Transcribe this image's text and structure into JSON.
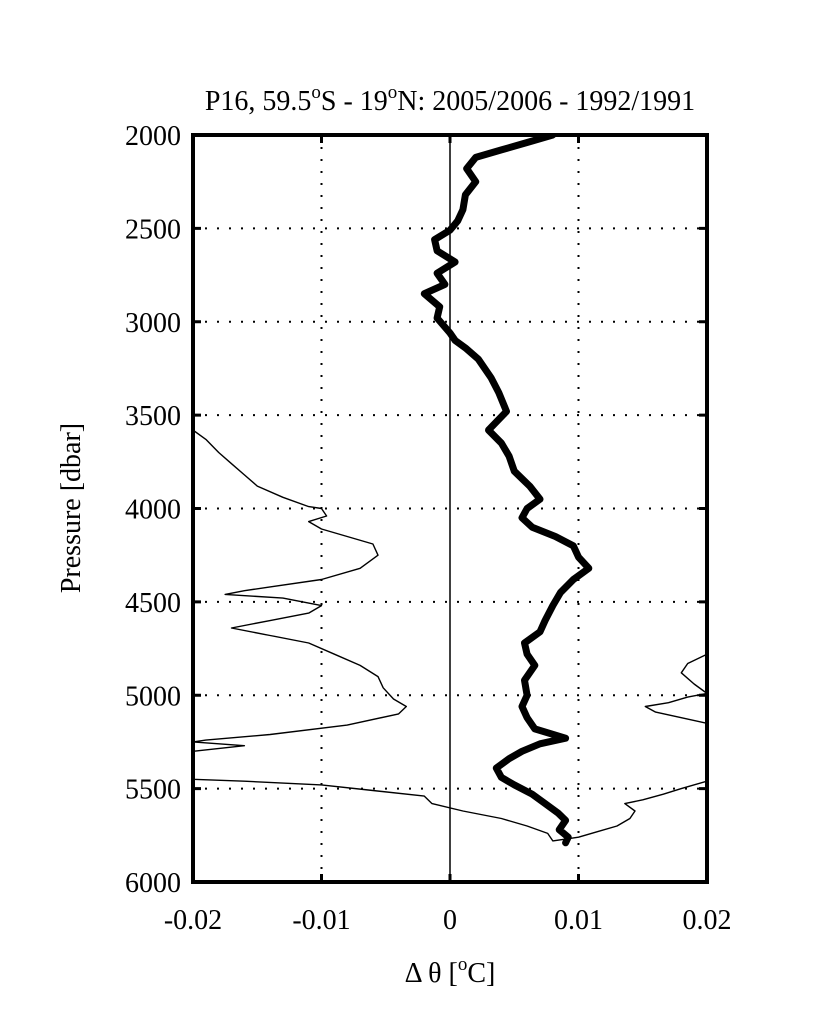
{
  "chart_data": {
    "type": "line",
    "title": {
      "part1": "P16, 59.5",
      "sup1": "o",
      "part2": "S - 19",
      "sup2": "o",
      "part3": "N: 2005/2006 - 1992/1991"
    },
    "xlabel": {
      "part1": "Δ θ [",
      "sup": "o",
      "part2": "C]"
    },
    "ylabel": "Pressure [dbar]",
    "xlim": [
      -0.02,
      0.02
    ],
    "ylim": [
      2000,
      6000
    ],
    "y_inverted": true,
    "x_ticks": [
      -0.02,
      -0.01,
      0,
      0.01,
      0.02
    ],
    "x_tick_labels": [
      "-0.02",
      "-0.01",
      "0",
      "0.01",
      "0.02"
    ],
    "y_ticks": [
      2000,
      2500,
      3000,
      3500,
      4000,
      4500,
      5000,
      5500,
      6000
    ],
    "y_tick_labels": [
      "2000",
      "2500",
      "3000",
      "3500",
      "4000",
      "4500",
      "5000",
      "5500",
      "6000"
    ],
    "grid": "dotted",
    "colors": {
      "line": "#000000",
      "grid": "#000000"
    },
    "series": [
      {
        "style": "thick",
        "points": [
          [
            0.008,
            2000
          ],
          [
            0.006,
            2040
          ],
          [
            0.004,
            2080
          ],
          [
            0.002,
            2120
          ],
          [
            0.0013,
            2180
          ],
          [
            0.002,
            2250
          ],
          [
            0.0012,
            2320
          ],
          [
            0.001,
            2400
          ],
          [
            0.0006,
            2460
          ],
          [
            0.0,
            2510
          ],
          [
            -0.0012,
            2560
          ],
          [
            -0.001,
            2620
          ],
          [
            0.0004,
            2680
          ],
          [
            -0.001,
            2740
          ],
          [
            -0.0004,
            2800
          ],
          [
            -0.002,
            2850
          ],
          [
            -0.0008,
            2920
          ],
          [
            -0.001,
            2980
          ],
          [
            0.0,
            3060
          ],
          [
            0.0004,
            3100
          ],
          [
            0.0012,
            3140
          ],
          [
            0.0022,
            3200
          ],
          [
            0.0032,
            3300
          ],
          [
            0.0038,
            3380
          ],
          [
            0.0044,
            3480
          ],
          [
            0.003,
            3580
          ],
          [
            0.004,
            3650
          ],
          [
            0.0046,
            3720
          ],
          [
            0.005,
            3800
          ],
          [
            0.0062,
            3880
          ],
          [
            0.007,
            3950
          ],
          [
            0.006,
            4000
          ],
          [
            0.0056,
            4050
          ],
          [
            0.0064,
            4100
          ],
          [
            0.0082,
            4150
          ],
          [
            0.0096,
            4200
          ],
          [
            0.01,
            4260
          ],
          [
            0.0108,
            4320
          ],
          [
            0.0096,
            4380
          ],
          [
            0.0086,
            4450
          ],
          [
            0.008,
            4520
          ],
          [
            0.0074,
            4600
          ],
          [
            0.007,
            4660
          ],
          [
            0.0058,
            4720
          ],
          [
            0.006,
            4780
          ],
          [
            0.0066,
            4840
          ],
          [
            0.0058,
            4920
          ],
          [
            0.006,
            5000
          ],
          [
            0.0056,
            5060
          ],
          [
            0.006,
            5120
          ],
          [
            0.0066,
            5180
          ],
          [
            0.009,
            5230
          ],
          [
            0.007,
            5260
          ],
          [
            0.0056,
            5300
          ],
          [
            0.0046,
            5340
          ],
          [
            0.0036,
            5390
          ],
          [
            0.004,
            5440
          ],
          [
            0.005,
            5480
          ],
          [
            0.0064,
            5530
          ],
          [
            0.0074,
            5580
          ],
          [
            0.0084,
            5630
          ],
          [
            0.009,
            5670
          ],
          [
            0.0085,
            5720
          ],
          [
            0.0092,
            5760
          ],
          [
            0.009,
            5790
          ]
        ]
      },
      {
        "style": "thin",
        "points": [
          [
            -0.02,
            3580
          ],
          [
            -0.019,
            3630
          ],
          [
            -0.018,
            3700
          ],
          [
            -0.017,
            3760
          ],
          [
            -0.016,
            3820
          ],
          [
            -0.015,
            3880
          ],
          [
            -0.013,
            3940
          ],
          [
            -0.011,
            3990
          ],
          [
            -0.01,
            4000
          ],
          [
            -0.0096,
            4040
          ],
          [
            -0.011,
            4070
          ],
          [
            -0.01,
            4110
          ],
          [
            -0.008,
            4150
          ],
          [
            -0.006,
            4190
          ],
          [
            -0.0056,
            4250
          ],
          [
            -0.007,
            4320
          ],
          [
            -0.01,
            4380
          ],
          [
            -0.014,
            4420
          ],
          [
            -0.016,
            4440
          ],
          [
            -0.0175,
            4460
          ],
          [
            -0.013,
            4480
          ],
          [
            -0.01,
            4520
          ],
          [
            -0.011,
            4560
          ],
          [
            -0.014,
            4600
          ],
          [
            -0.017,
            4640
          ],
          [
            -0.014,
            4680
          ],
          [
            -0.011,
            4720
          ],
          [
            -0.009,
            4780
          ],
          [
            -0.007,
            4840
          ],
          [
            -0.0056,
            4900
          ],
          [
            -0.0052,
            4960
          ],
          [
            -0.0044,
            5020
          ],
          [
            -0.0034,
            5060
          ],
          [
            -0.004,
            5100
          ],
          [
            -0.008,
            5160
          ],
          [
            -0.014,
            5210
          ],
          [
            -0.019,
            5240
          ],
          [
            -0.02,
            5250
          ],
          [
            -0.016,
            5270
          ],
          [
            -0.02,
            5300
          ],
          [
            -0.02,
            5450
          ],
          [
            -0.016,
            5460
          ],
          [
            -0.01,
            5480
          ],
          [
            -0.006,
            5510
          ],
          [
            -0.002,
            5540
          ],
          [
            -0.0014,
            5580
          ],
          [
            0.001,
            5620
          ],
          [
            0.004,
            5660
          ],
          [
            0.006,
            5700
          ],
          [
            0.0076,
            5740
          ],
          [
            0.008,
            5780
          ],
          [
            0.01,
            5760
          ],
          [
            0.0115,
            5730
          ],
          [
            0.013,
            5700
          ],
          [
            0.014,
            5660
          ],
          [
            0.0144,
            5620
          ],
          [
            0.0136,
            5580
          ],
          [
            0.015,
            5560
          ],
          [
            0.0166,
            5530
          ],
          [
            0.018,
            5500
          ],
          [
            0.02,
            5460
          ]
        ]
      },
      {
        "style": "thin",
        "points": [
          [
            0.02,
            4780
          ],
          [
            0.0185,
            4830
          ],
          [
            0.018,
            4880
          ],
          [
            0.019,
            4940
          ],
          [
            0.02,
            4990
          ],
          [
            0.0185,
            5010
          ],
          [
            0.017,
            5040
          ],
          [
            0.0152,
            5060
          ],
          [
            0.016,
            5090
          ],
          [
            0.018,
            5120
          ],
          [
            0.02,
            5150
          ]
        ]
      }
    ]
  }
}
